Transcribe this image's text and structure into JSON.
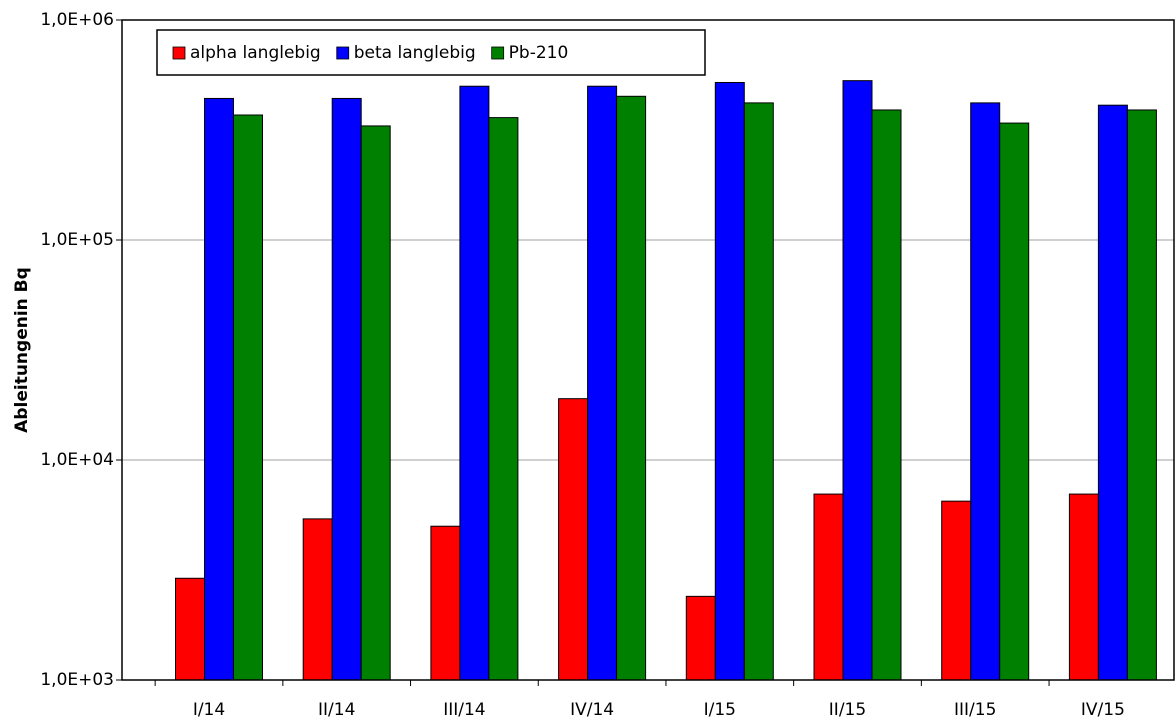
{
  "chart_data": {
    "type": "bar",
    "ylabel": "Ableitungenin Bq",
    "categories": [
      "I/14",
      "II/14",
      "III/14",
      "IV/14",
      "I/15",
      "II/15",
      "III/15",
      "IV/15"
    ],
    "series": [
      {
        "name": "alpha langlebig",
        "color": "#ff0000",
        "values": [
          2900,
          5400,
          5000,
          19000,
          2400,
          7000,
          6500,
          7000
        ]
      },
      {
        "name": "beta langlebig",
        "color": "#0000ff",
        "values": [
          440000,
          440000,
          500000,
          500000,
          520000,
          530000,
          420000,
          410000
        ]
      },
      {
        "name": "Pb-210",
        "color": "#008000",
        "values": [
          370000,
          330000,
          360000,
          450000,
          420000,
          390000,
          340000,
          390000
        ]
      }
    ],
    "ylim": [
      1000,
      1000000
    ],
    "yticks": [
      {
        "value": 1000,
        "label": "1,0E+03"
      },
      {
        "value": 10000,
        "label": "1,0E+04"
      },
      {
        "value": 100000,
        "label": "1,0E+05"
      },
      {
        "value": 1000000,
        "label": "1,0E+06"
      }
    ],
    "log_y": true,
    "grid": true,
    "legend": "top-left"
  }
}
